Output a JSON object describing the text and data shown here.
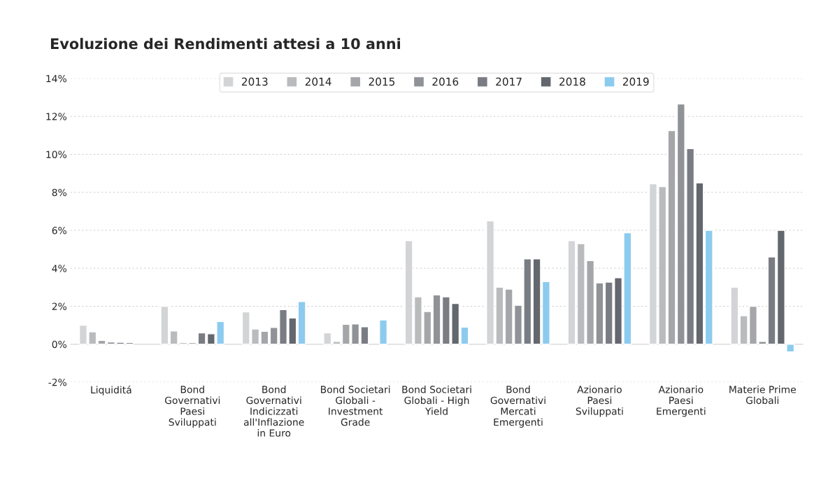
{
  "chart_data": {
    "type": "bar",
    "title": "Evoluzione dei Rendimenti attesi a 10 anni",
    "categories": [
      "Liquiditá",
      "Bond Governativi Paesi Sviluppati",
      "Bond Governativi Indicizzati all'Inflazione in Euro",
      "Bond Societari Globali - Investment Grade",
      "Bond Societari Globali - High Yield",
      "Bond Governativi Mercati Emergenti",
      "Azionario Paesi Sviluppati",
      "Azionario Paesi Emergenti",
      "Materie Prime Globali"
    ],
    "series": [
      {
        "name": "2013",
        "color": "#d3d4d6",
        "values": [
          1.0,
          2.0,
          1.7,
          0.6,
          5.45,
          6.5,
          5.45,
          8.45,
          3.0
        ]
      },
      {
        "name": "2014",
        "color": "#b9bbbd",
        "values": [
          0.65,
          0.7,
          0.8,
          0.15,
          2.5,
          3.0,
          5.3,
          8.3,
          1.5
        ]
      },
      {
        "name": "2015",
        "color": "#a4a6a9",
        "values": [
          0.2,
          0.08,
          0.68,
          1.05,
          1.72,
          2.9,
          4.4,
          11.25,
          2.0
        ]
      },
      {
        "name": "2016",
        "color": "#8f9296",
        "values": [
          0.12,
          0.08,
          0.88,
          1.07,
          2.6,
          2.05,
          3.23,
          12.65,
          0.15
        ]
      },
      {
        "name": "2017",
        "color": "#797d83",
        "values": [
          0.1,
          0.6,
          1.82,
          0.92,
          2.5,
          4.5,
          3.27,
          10.3,
          4.6
        ]
      },
      {
        "name": "2018",
        "color": "#63676e",
        "values": [
          0.08,
          0.55,
          1.38,
          null,
          2.15,
          4.5,
          3.5,
          8.5,
          6.0
        ]
      },
      {
        "name": "2019",
        "color": "#8ccbee",
        "values": [
          null,
          1.2,
          2.25,
          1.28,
          0.9,
          3.3,
          5.87,
          6.0,
          -0.4
        ]
      }
    ],
    "ylim": [
      -2,
      14
    ],
    "yticks": [
      {
        "value": -2,
        "label": "-2%"
      },
      {
        "value": 0,
        "label": "0%"
      },
      {
        "value": 2,
        "label": "2%"
      },
      {
        "value": 4,
        "label": "4%"
      },
      {
        "value": 6,
        "label": "6%"
      },
      {
        "value": 8,
        "label": "8%"
      },
      {
        "value": 10,
        "label": "10%"
      },
      {
        "value": 12,
        "label": "12%"
      },
      {
        "value": 14,
        "label": "14%"
      }
    ],
    "ref_lines": [
      {
        "axis": "y",
        "value": 0,
        "color": "#dddddd"
      }
    ],
    "grid": "y",
    "legend": "top"
  }
}
